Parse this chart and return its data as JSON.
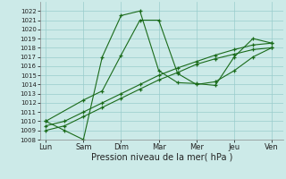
{
  "title": "",
  "xlabel": "Pression niveau de la mer( hPa )",
  "ylabel": "",
  "background_color": "#cceae8",
  "grid_color": "#99cccc",
  "line_color": "#1a6b1a",
  "xtick_labels": [
    "Lun",
    "Sam",
    "Dim",
    "Mar",
    "Mer",
    "Jeu",
    "Ven"
  ],
  "xtick_positions": [
    0,
    1,
    2,
    3,
    4,
    5,
    6
  ],
  "ylim": [
    1008,
    1023
  ],
  "ytick_min": 1008,
  "ytick_max": 1022,
  "line1_x": [
    0,
    0.5,
    1.0,
    1.5,
    2.0,
    2.5,
    3.0,
    3.5,
    4.0,
    4.5,
    5.0,
    5.5,
    6.0
  ],
  "line1_y": [
    1010.0,
    1009.0,
    1008.0,
    1017.0,
    1021.5,
    1022.0,
    1015.5,
    1014.2,
    1014.1,
    1013.9,
    1017.0,
    1019.0,
    1018.5
  ],
  "line2_x": [
    0,
    1.0,
    1.5,
    2.0,
    2.5,
    3.0,
    3.5,
    4.0,
    4.5,
    5.0,
    5.5,
    6.0
  ],
  "line2_y": [
    1010.0,
    1012.3,
    1013.3,
    1017.2,
    1021.0,
    1021.0,
    1015.2,
    1014.0,
    1014.3,
    1015.5,
    1017.0,
    1018.0
  ],
  "line3_x": [
    0,
    0.5,
    1.0,
    1.5,
    2.0,
    2.5,
    3.0,
    3.5,
    4.0,
    4.5,
    5.0,
    5.5,
    6.0
  ],
  "line3_y": [
    1009.0,
    1009.5,
    1010.5,
    1011.5,
    1012.5,
    1013.5,
    1014.5,
    1015.3,
    1016.2,
    1016.8,
    1017.3,
    1017.8,
    1018.0
  ],
  "line4_x": [
    0,
    0.5,
    1.0,
    1.5,
    2.0,
    2.5,
    3.0,
    3.5,
    4.0,
    4.5,
    5.0,
    5.5,
    6.0
  ],
  "line4_y": [
    1009.5,
    1010.0,
    1011.0,
    1012.0,
    1013.0,
    1014.0,
    1015.0,
    1015.8,
    1016.5,
    1017.2,
    1017.8,
    1018.3,
    1018.5
  ],
  "figsize": [
    3.2,
    2.0
  ],
  "dpi": 100
}
